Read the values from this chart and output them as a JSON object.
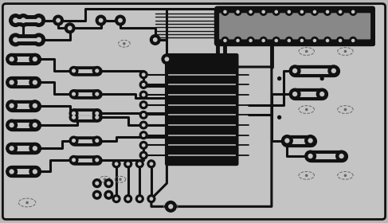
{
  "bg_color": "#b8b8b8",
  "board_color": "#c4c4c4",
  "tc": "#111111",
  "dc": "#666666",
  "figsize": [
    4.87,
    2.8
  ],
  "dpi": 100
}
